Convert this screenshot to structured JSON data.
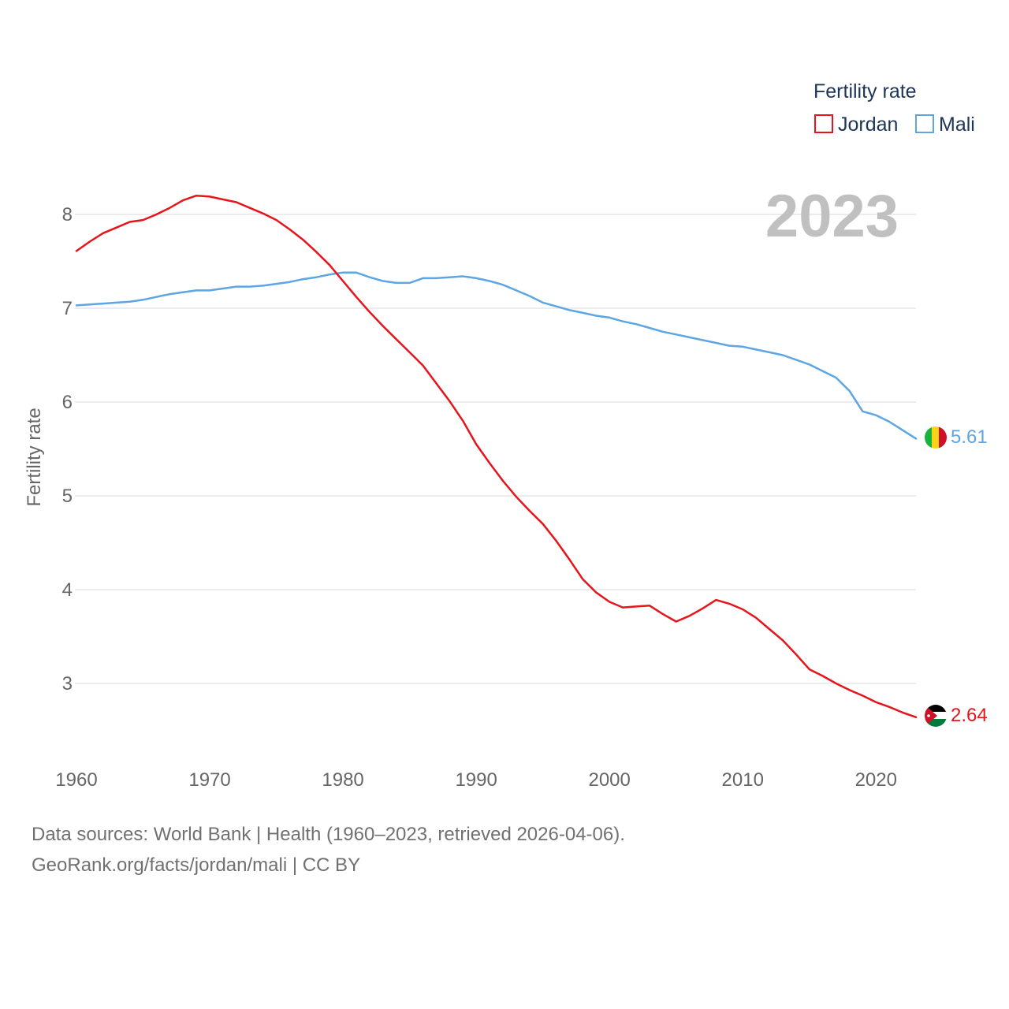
{
  "chart_data": {
    "type": "line",
    "title": "",
    "xlabel": "",
    "ylabel": "Fertility rate",
    "xlim": [
      1960,
      2023
    ],
    "ylim": [
      2.4,
      8.4
    ],
    "x_ticks": [
      1960,
      1970,
      1980,
      1990,
      2000,
      2010,
      2020
    ],
    "y_ticks": [
      3,
      4,
      5,
      6,
      7,
      8
    ],
    "legend_title": "Fertility rate",
    "legend_position": "top-right",
    "current_year": "2023",
    "x": [
      1960,
      1961,
      1962,
      1963,
      1964,
      1965,
      1966,
      1967,
      1968,
      1969,
      1970,
      1971,
      1972,
      1973,
      1974,
      1975,
      1976,
      1977,
      1978,
      1979,
      1980,
      1981,
      1982,
      1983,
      1984,
      1985,
      1986,
      1987,
      1988,
      1989,
      1990,
      1991,
      1992,
      1993,
      1994,
      1995,
      1996,
      1997,
      1998,
      1999,
      2000,
      2001,
      2002,
      2003,
      2004,
      2005,
      2006,
      2007,
      2008,
      2009,
      2010,
      2011,
      2012,
      2013,
      2014,
      2015,
      2016,
      2017,
      2018,
      2019,
      2020,
      2021,
      2022,
      2023
    ],
    "series": [
      {
        "name": "Jordan",
        "color": "#e8141b",
        "end_label": "2.64",
        "values": [
          7.61,
          7.71,
          7.8,
          7.86,
          7.92,
          7.94,
          8.0,
          8.07,
          8.15,
          8.2,
          8.19,
          8.16,
          8.13,
          8.07,
          8.01,
          7.94,
          7.84,
          7.73,
          7.6,
          7.46,
          7.29,
          7.12,
          6.96,
          6.81,
          6.67,
          6.53,
          6.39,
          6.2,
          6.01,
          5.8,
          5.55,
          5.35,
          5.16,
          4.99,
          4.84,
          4.7,
          4.52,
          4.32,
          4.11,
          3.97,
          3.87,
          3.81,
          3.82,
          3.83,
          3.74,
          3.66,
          3.72,
          3.8,
          3.89,
          3.85,
          3.79,
          3.7,
          3.58,
          3.46,
          3.31,
          3.15,
          3.08,
          3.0,
          2.93,
          2.87,
          2.8,
          2.75,
          2.69,
          2.64
        ]
      },
      {
        "name": "Mali",
        "color": "#5ea5e3",
        "end_label": "5.61",
        "values": [
          7.03,
          7.04,
          7.05,
          7.06,
          7.07,
          7.09,
          7.12,
          7.15,
          7.17,
          7.19,
          7.19,
          7.21,
          7.23,
          7.23,
          7.24,
          7.26,
          7.28,
          7.31,
          7.33,
          7.36,
          7.38,
          7.38,
          7.33,
          7.29,
          7.27,
          7.27,
          7.32,
          7.32,
          7.33,
          7.34,
          7.32,
          7.29,
          7.25,
          7.19,
          7.13,
          7.06,
          7.02,
          6.98,
          6.95,
          6.92,
          6.9,
          6.86,
          6.83,
          6.79,
          6.75,
          6.72,
          6.69,
          6.66,
          6.63,
          6.6,
          6.59,
          6.56,
          6.53,
          6.5,
          6.45,
          6.4,
          6.33,
          6.26,
          6.12,
          5.9,
          5.86,
          5.79,
          5.7,
          5.61
        ]
      }
    ]
  },
  "footer": {
    "sources": "Data sources: World Bank | Health (1960–2023, retrieved 2026-04-06).",
    "attribution": "GeoRank.org/facts/jordan/mali | CC BY"
  }
}
